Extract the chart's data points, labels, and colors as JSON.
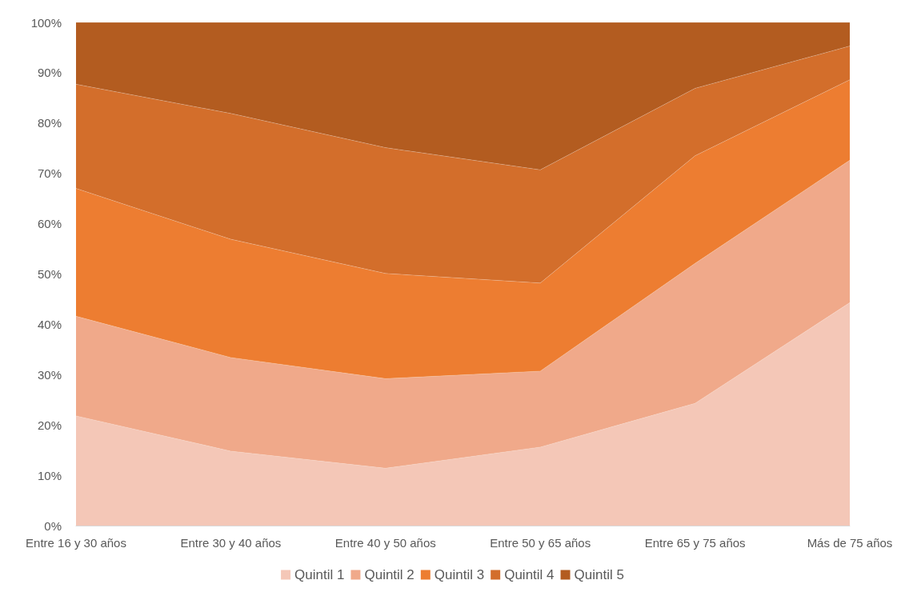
{
  "chart_data": {
    "type": "area",
    "stacked": true,
    "categories": [
      "Entre 16 y 30 años",
      "Entre 30 y 40 años",
      "Entre 40 y 50 años",
      "Entre 50 y 65 años",
      "Entre 65 y 75 años",
      "Más de 75 años"
    ],
    "series": [
      {
        "name": "Quintil 1",
        "color": "#f4c7b7",
        "values": [
          21.8,
          14.8,
          11.4,
          15.6,
          24.3,
          44.3
        ]
      },
      {
        "name": "Quintil 2",
        "color": "#f0a98a",
        "values": [
          19.8,
          18.6,
          17.8,
          15.1,
          27.8,
          28.3
        ]
      },
      {
        "name": "Quintil 3",
        "color": "#ed7d31",
        "values": [
          25.4,
          23.5,
          20.9,
          17.5,
          21.4,
          16.0
        ]
      },
      {
        "name": "Quintil 4",
        "color": "#d36e2b",
        "values": [
          20.7,
          25.0,
          25.0,
          22.5,
          13.4,
          6.7
        ]
      },
      {
        "name": "Quintil 5",
        "color": "#b35c20",
        "values": [
          12.3,
          18.1,
          24.9,
          29.3,
          13.1,
          4.7
        ]
      }
    ],
    "ylim": [
      0,
      100
    ],
    "yticks": [
      {
        "value": 0,
        "label": "0%"
      },
      {
        "value": 10,
        "label": "10%"
      },
      {
        "value": 20,
        "label": "20%"
      },
      {
        "value": 30,
        "label": "30%"
      },
      {
        "value": 40,
        "label": "40%"
      },
      {
        "value": 50,
        "label": "50%"
      },
      {
        "value": 60,
        "label": "60%"
      },
      {
        "value": 70,
        "label": "70%"
      },
      {
        "value": 80,
        "label": "80%"
      },
      {
        "value": 90,
        "label": "90%"
      },
      {
        "value": 100,
        "label": "100%"
      }
    ],
    "grid": false,
    "legend": "bottom"
  }
}
